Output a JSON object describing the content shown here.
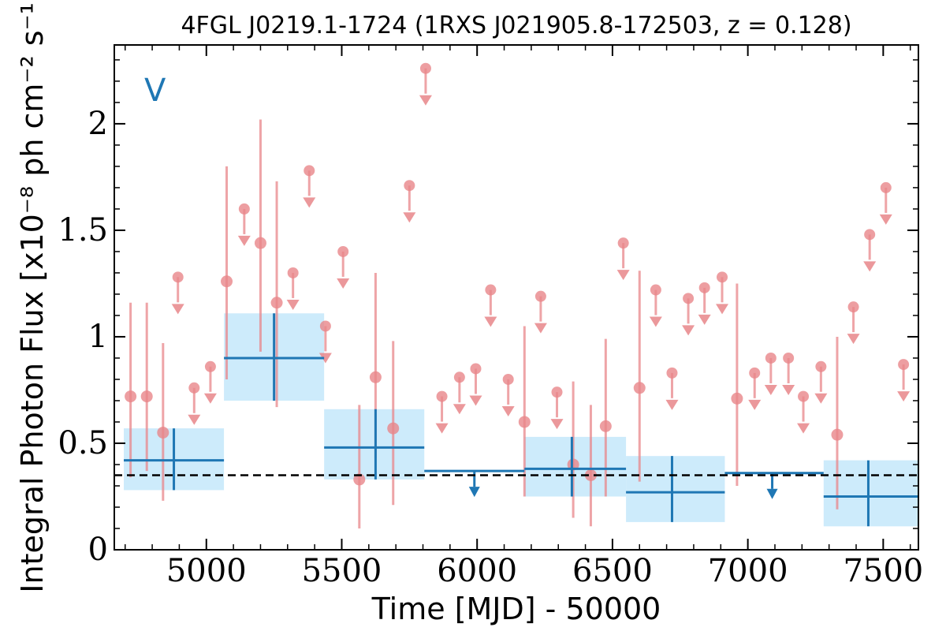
{
  "chart_data": {
    "type": "scatter",
    "title": "4FGL J0219.1-1724 (1RXS J021905.8-172503, z = 0.128)",
    "xlabel": "Time [MJD] - 50000",
    "ylabel": "Integral Photon Flux [x10⁻⁸ ph cm⁻² s⁻¹]",
    "panel_label": "V",
    "xlim": [
      4660,
      7630
    ],
    "ylim": [
      0,
      2.37
    ],
    "x_ticks": [
      5000,
      5500,
      6000,
      6500,
      7000,
      7500
    ],
    "x_tick_labels": [
      "5000",
      "5500",
      "6000",
      "6500",
      "7000",
      "7500"
    ],
    "y_ticks": [
      0,
      0.5,
      1,
      1.5,
      2
    ],
    "y_tick_labels": [
      "0",
      "0.5",
      "1",
      "1.5",
      "2"
    ],
    "colors": {
      "fine": "#e8868a",
      "coarse": "#1f77b4",
      "box": "#cdebfb",
      "mean": "#000000"
    },
    "mean_flux": 0.35,
    "series": [
      {
        "name": "",
        "binning": "fine",
        "detections": [
          {
            "x": 4720,
            "y": 0.72,
            "ylo": 0.34,
            "yhi": 1.16
          },
          {
            "x": 4780,
            "y": 0.72,
            "ylo": 0.37,
            "yhi": 1.16
          },
          {
            "x": 4840,
            "y": 0.55,
            "ylo": 0.23,
            "yhi": 0.97
          },
          {
            "x": 5075,
            "y": 1.26,
            "ylo": 0.8,
            "yhi": 1.8
          },
          {
            "x": 5200,
            "y": 1.44,
            "ylo": 0.93,
            "yhi": 2.02
          },
          {
            "x": 5260,
            "y": 1.16,
            "ylo": 0.67,
            "yhi": 1.73
          },
          {
            "x": 5565,
            "y": 0.33,
            "ylo": 0.1,
            "yhi": 0.68
          },
          {
            "x": 5625,
            "y": 0.81,
            "ylo": 0.43,
            "yhi": 1.3
          },
          {
            "x": 5690,
            "y": 0.57,
            "ylo": 0.21,
            "yhi": 0.98
          },
          {
            "x": 6175,
            "y": 0.6,
            "ylo": 0.25,
            "yhi": 1.05
          },
          {
            "x": 6355,
            "y": 0.4,
            "ylo": 0.15,
            "yhi": 0.79
          },
          {
            "x": 6420,
            "y": 0.35,
            "ylo": 0.11,
            "yhi": 0.68
          },
          {
            "x": 6475,
            "y": 0.58,
            "ylo": 0.25,
            "yhi": 0.99
          },
          {
            "x": 6600,
            "y": 0.76,
            "ylo": 0.32,
            "yhi": 1.31
          },
          {
            "x": 6960,
            "y": 0.71,
            "ylo": 0.3,
            "yhi": 1.25
          },
          {
            "x": 7330,
            "y": 0.54,
            "ylo": 0.19,
            "yhi": 1.0
          }
        ],
        "upper_limits": [
          {
            "x": 4895,
            "y": 1.28
          },
          {
            "x": 4955,
            "y": 0.76
          },
          {
            "x": 5015,
            "y": 0.86
          },
          {
            "x": 5140,
            "y": 1.6
          },
          {
            "x": 5320,
            "y": 1.3
          },
          {
            "x": 5380,
            "y": 1.78
          },
          {
            "x": 5440,
            "y": 1.05
          },
          {
            "x": 5505,
            "y": 1.4
          },
          {
            "x": 5750,
            "y": 1.71
          },
          {
            "x": 5810,
            "y": 2.26
          },
          {
            "x": 5870,
            "y": 0.72
          },
          {
            "x": 5935,
            "y": 0.81
          },
          {
            "x": 5995,
            "y": 0.85
          },
          {
            "x": 6050,
            "y": 1.22
          },
          {
            "x": 6115,
            "y": 0.8
          },
          {
            "x": 6235,
            "y": 1.19
          },
          {
            "x": 6295,
            "y": 0.74
          },
          {
            "x": 6540,
            "y": 1.44
          },
          {
            "x": 6660,
            "y": 1.22
          },
          {
            "x": 6720,
            "y": 0.83
          },
          {
            "x": 6780,
            "y": 1.18
          },
          {
            "x": 6840,
            "y": 1.23
          },
          {
            "x": 6905,
            "y": 1.28
          },
          {
            "x": 7025,
            "y": 0.83
          },
          {
            "x": 7085,
            "y": 0.9
          },
          {
            "x": 7150,
            "y": 0.9
          },
          {
            "x": 7205,
            "y": 0.72
          },
          {
            "x": 7270,
            "y": 0.86
          },
          {
            "x": 7390,
            "y": 1.14
          },
          {
            "x": 7450,
            "y": 1.48
          },
          {
            "x": 7510,
            "y": 1.7
          },
          {
            "x": 7575,
            "y": 0.87
          }
        ]
      },
      {
        "name": "",
        "binning": "coarse",
        "detections": [
          {
            "x": 4880,
            "y": 0.42,
            "xlo": 4695,
            "xhi": 5065,
            "ylo": 0.28,
            "yhi": 0.57
          },
          {
            "x": 5250,
            "y": 0.9,
            "xlo": 5065,
            "xhi": 5435,
            "ylo": 0.7,
            "yhi": 1.11
          },
          {
            "x": 5625,
            "y": 0.48,
            "xlo": 5435,
            "xhi": 5805,
            "ylo": 0.33,
            "yhi": 0.66
          },
          {
            "x": 6350,
            "y": 0.38,
            "xlo": 6175,
            "xhi": 6550,
            "ylo": 0.25,
            "yhi": 0.53
          },
          {
            "x": 6720,
            "y": 0.27,
            "xlo": 6550,
            "xhi": 6915,
            "ylo": 0.13,
            "yhi": 0.44
          },
          {
            "x": 7445,
            "y": 0.25,
            "xlo": 7280,
            "xhi": 7650,
            "ylo": 0.11,
            "yhi": 0.42
          }
        ],
        "upper_limits": [
          {
            "x": 5990,
            "y": 0.37,
            "xlo": 5805,
            "xhi": 6175
          },
          {
            "x": 7090,
            "y": 0.36,
            "xlo": 6915,
            "xhi": 7280
          }
        ]
      }
    ]
  }
}
